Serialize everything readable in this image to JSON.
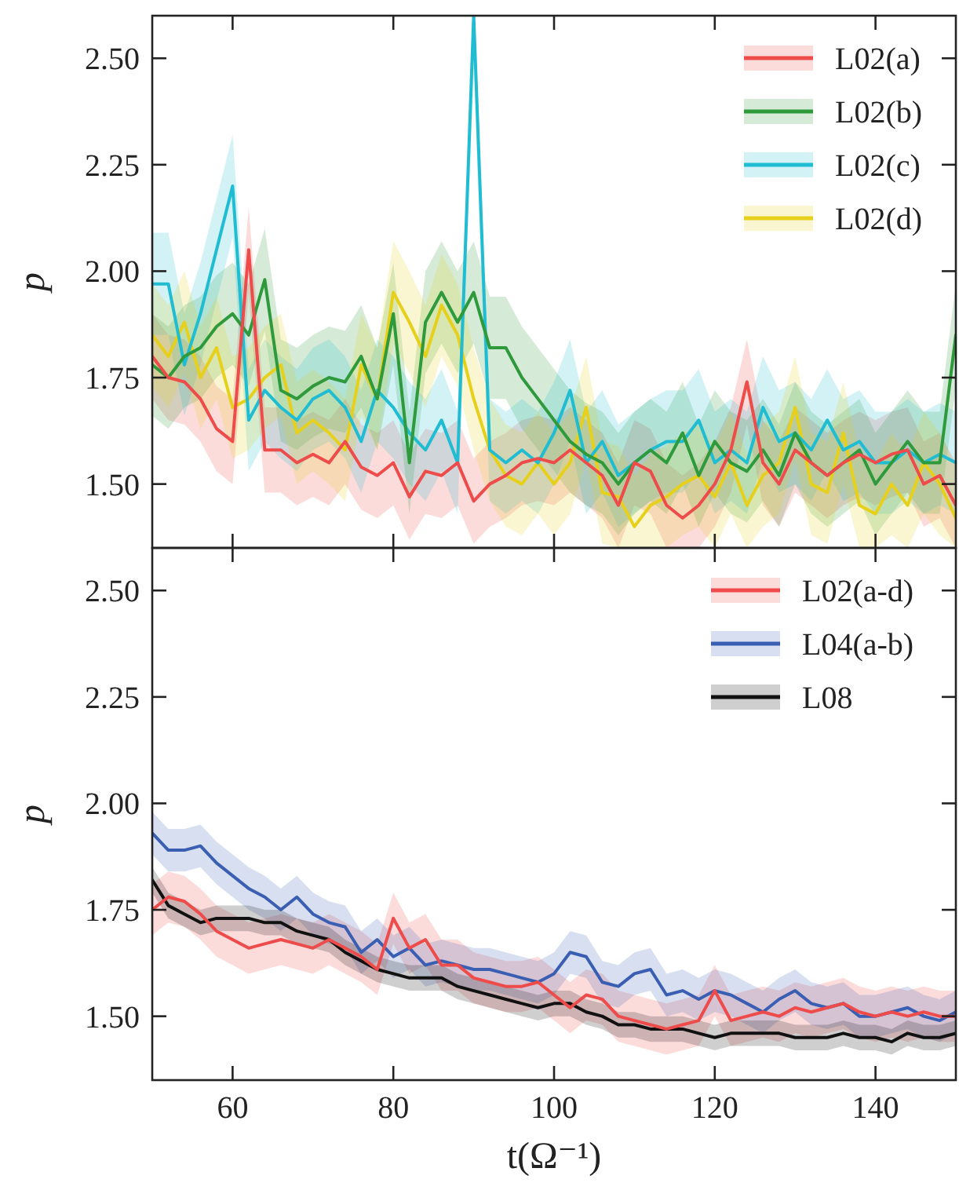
{
  "chart_data": [
    {
      "type": "line",
      "ylabel": "p",
      "ylim": [
        1.35,
        2.6
      ],
      "yticks": [
        {
          "value": 1.5,
          "label": "1.50"
        },
        {
          "value": 1.75,
          "label": "1.75"
        },
        {
          "value": 2.0,
          "label": "2.00"
        },
        {
          "value": 2.25,
          "label": "2.25"
        },
        {
          "value": 2.5,
          "label": "2.50"
        }
      ],
      "xlim": [
        50,
        150
      ],
      "xticks": [
        60,
        80,
        100,
        120,
        140
      ],
      "tick_labels": "y",
      "legend": "top right",
      "x": [
        50,
        52,
        54,
        56,
        58,
        60,
        62,
        64,
        66,
        68,
        70,
        72,
        74,
        76,
        78,
        80,
        82,
        84,
        86,
        88,
        90,
        92,
        94,
        96,
        98,
        100,
        102,
        104,
        106,
        108,
        110,
        112,
        114,
        116,
        118,
        120,
        122,
        124,
        126,
        128,
        130,
        132,
        134,
        136,
        138,
        140,
        142,
        144,
        146,
        148,
        150
      ],
      "series": [
        {
          "name": "L02(a)",
          "color": "#ee4b4b",
          "values": [
            1.8,
            1.75,
            1.74,
            1.7,
            1.63,
            1.6,
            2.05,
            1.58,
            1.58,
            1.55,
            1.57,
            1.55,
            1.6,
            1.54,
            1.52,
            1.55,
            1.47,
            1.53,
            1.52,
            1.55,
            1.46,
            1.5,
            1.52,
            1.55,
            1.56,
            1.55,
            1.58,
            1.55,
            1.52,
            1.45,
            1.55,
            1.53,
            1.45,
            1.42,
            1.45,
            1.5,
            1.58,
            1.74,
            1.55,
            1.5,
            1.58,
            1.55,
            1.52,
            1.55,
            1.57,
            1.55,
            1.57,
            1.58,
            1.5,
            1.52,
            1.45
          ],
          "lower": [
            1.7,
            1.65,
            1.64,
            1.6,
            1.53,
            1.5,
            1.95,
            1.48,
            1.48,
            1.45,
            1.47,
            1.45,
            1.5,
            1.44,
            1.42,
            1.45,
            1.37,
            1.43,
            1.42,
            1.45,
            1.36,
            1.4,
            1.42,
            1.45,
            1.46,
            1.45,
            1.48,
            1.45,
            1.42,
            1.35,
            1.45,
            1.43,
            1.35,
            1.35,
            1.35,
            1.4,
            1.48,
            1.64,
            1.45,
            1.4,
            1.48,
            1.45,
            1.42,
            1.45,
            1.47,
            1.45,
            1.47,
            1.48,
            1.4,
            1.42,
            1.35
          ],
          "upper": [
            1.9,
            1.85,
            1.84,
            1.8,
            1.73,
            1.7,
            2.15,
            1.68,
            1.68,
            1.65,
            1.67,
            1.65,
            1.7,
            1.64,
            1.62,
            1.65,
            1.57,
            1.63,
            1.62,
            1.65,
            1.56,
            1.6,
            1.62,
            1.65,
            1.66,
            1.65,
            1.68,
            1.65,
            1.62,
            1.55,
            1.65,
            1.63,
            1.55,
            1.52,
            1.55,
            1.6,
            1.68,
            1.84,
            1.65,
            1.6,
            1.68,
            1.65,
            1.62,
            1.65,
            1.67,
            1.65,
            1.67,
            1.68,
            1.6,
            1.62,
            1.55
          ]
        },
        {
          "name": "L02(b)",
          "color": "#2f9a3c",
          "values": [
            1.78,
            1.75,
            1.8,
            1.82,
            1.87,
            1.9,
            1.85,
            1.98,
            1.72,
            1.7,
            1.73,
            1.75,
            1.74,
            1.8,
            1.7,
            1.9,
            1.55,
            1.88,
            1.95,
            1.88,
            1.95,
            1.82,
            1.82,
            1.75,
            1.7,
            1.65,
            1.6,
            1.57,
            1.55,
            1.5,
            1.55,
            1.58,
            1.55,
            1.62,
            1.52,
            1.6,
            1.55,
            1.53,
            1.58,
            1.52,
            1.62,
            1.55,
            1.52,
            1.55,
            1.58,
            1.5,
            1.55,
            1.6,
            1.55,
            1.55,
            1.85
          ],
          "lower": [
            1.66,
            1.63,
            1.68,
            1.7,
            1.75,
            1.78,
            1.73,
            1.86,
            1.6,
            1.58,
            1.61,
            1.63,
            1.62,
            1.68,
            1.58,
            1.78,
            1.43,
            1.76,
            1.83,
            1.76,
            1.83,
            1.7,
            1.7,
            1.63,
            1.58,
            1.53,
            1.48,
            1.45,
            1.43,
            1.38,
            1.43,
            1.46,
            1.43,
            1.5,
            1.4,
            1.48,
            1.43,
            1.41,
            1.46,
            1.4,
            1.5,
            1.43,
            1.4,
            1.43,
            1.46,
            1.38,
            1.43,
            1.48,
            1.43,
            1.43,
            1.73
          ],
          "upper": [
            1.9,
            1.87,
            1.92,
            1.94,
            1.99,
            2.02,
            1.97,
            2.1,
            1.84,
            1.82,
            1.85,
            1.87,
            1.86,
            1.92,
            1.82,
            2.02,
            1.67,
            2.0,
            2.07,
            2.0,
            2.07,
            1.94,
            1.94,
            1.87,
            1.82,
            1.77,
            1.72,
            1.69,
            1.67,
            1.62,
            1.67,
            1.7,
            1.67,
            1.74,
            1.64,
            1.72,
            1.67,
            1.65,
            1.7,
            1.64,
            1.74,
            1.67,
            1.64,
            1.67,
            1.7,
            1.62,
            1.67,
            1.72,
            1.67,
            1.67,
            1.97
          ]
        },
        {
          "name": "L02(c)",
          "color": "#1fbcd2",
          "values": [
            1.97,
            1.97,
            1.78,
            1.9,
            2.05,
            2.2,
            1.65,
            1.72,
            1.68,
            1.65,
            1.7,
            1.72,
            1.68,
            1.6,
            1.72,
            1.68,
            1.62,
            1.58,
            1.65,
            1.55,
            2.6,
            1.58,
            1.55,
            1.58,
            1.55,
            1.62,
            1.72,
            1.55,
            1.6,
            1.52,
            1.55,
            1.58,
            1.6,
            1.6,
            1.65,
            1.55,
            1.58,
            1.55,
            1.68,
            1.6,
            1.62,
            1.58,
            1.65,
            1.58,
            1.6,
            1.55,
            1.55,
            1.58,
            1.55,
            1.57,
            1.55
          ],
          "lower": [
            1.85,
            1.85,
            1.66,
            1.78,
            1.93,
            2.08,
            1.53,
            1.6,
            1.56,
            1.53,
            1.58,
            1.6,
            1.56,
            1.48,
            1.6,
            1.56,
            1.5,
            1.46,
            1.53,
            1.43,
            2.48,
            1.46,
            1.43,
            1.46,
            1.43,
            1.5,
            1.6,
            1.43,
            1.48,
            1.4,
            1.43,
            1.46,
            1.48,
            1.48,
            1.53,
            1.43,
            1.46,
            1.43,
            1.56,
            1.48,
            1.5,
            1.46,
            1.53,
            1.46,
            1.48,
            1.43,
            1.43,
            1.46,
            1.43,
            1.45,
            1.43
          ],
          "upper": [
            2.09,
            2.09,
            1.9,
            2.02,
            2.17,
            2.32,
            1.77,
            1.84,
            1.8,
            1.77,
            1.82,
            1.84,
            1.8,
            1.72,
            1.84,
            1.8,
            1.74,
            1.7,
            1.77,
            1.67,
            2.6,
            1.7,
            1.67,
            1.7,
            1.67,
            1.74,
            1.84,
            1.67,
            1.72,
            1.64,
            1.67,
            1.7,
            1.72,
            1.72,
            1.77,
            1.67,
            1.7,
            1.67,
            1.8,
            1.72,
            1.74,
            1.7,
            1.77,
            1.7,
            1.72,
            1.67,
            1.67,
            1.7,
            1.67,
            1.69,
            1.67
          ]
        },
        {
          "name": "L02(d)",
          "color": "#e6d01c",
          "values": [
            1.85,
            1.8,
            1.88,
            1.75,
            1.82,
            1.68,
            1.7,
            1.75,
            1.78,
            1.62,
            1.65,
            1.62,
            1.58,
            1.78,
            1.7,
            1.95,
            1.88,
            1.8,
            1.92,
            1.85,
            1.7,
            1.58,
            1.52,
            1.5,
            1.55,
            1.5,
            1.55,
            1.68,
            1.48,
            1.47,
            1.4,
            1.45,
            1.47,
            1.5,
            1.52,
            1.47,
            1.55,
            1.45,
            1.52,
            1.55,
            1.68,
            1.5,
            1.48,
            1.62,
            1.45,
            1.43,
            1.5,
            1.45,
            1.55,
            1.5,
            1.42
          ],
          "lower": [
            1.73,
            1.68,
            1.76,
            1.63,
            1.7,
            1.56,
            1.58,
            1.63,
            1.66,
            1.5,
            1.53,
            1.5,
            1.46,
            1.66,
            1.58,
            1.83,
            1.76,
            1.68,
            1.8,
            1.73,
            1.58,
            1.46,
            1.4,
            1.38,
            1.43,
            1.38,
            1.43,
            1.56,
            1.36,
            1.35,
            1.35,
            1.35,
            1.35,
            1.38,
            1.4,
            1.35,
            1.43,
            1.35,
            1.4,
            1.43,
            1.56,
            1.38,
            1.36,
            1.5,
            1.35,
            1.35,
            1.38,
            1.35,
            1.43,
            1.38,
            1.35
          ],
          "upper": [
            1.97,
            1.92,
            2.0,
            1.87,
            1.94,
            1.8,
            1.82,
            1.87,
            1.9,
            1.74,
            1.77,
            1.74,
            1.7,
            1.9,
            1.82,
            2.07,
            2.0,
            1.92,
            2.04,
            1.97,
            1.82,
            1.7,
            1.64,
            1.62,
            1.67,
            1.62,
            1.67,
            1.8,
            1.6,
            1.59,
            1.52,
            1.57,
            1.59,
            1.62,
            1.64,
            1.59,
            1.67,
            1.57,
            1.64,
            1.67,
            1.8,
            1.62,
            1.6,
            1.74,
            1.57,
            1.55,
            1.62,
            1.57,
            1.67,
            1.62,
            1.54
          ]
        }
      ]
    },
    {
      "type": "line",
      "ylabel": "p",
      "xlabel": "t(Ω⁻¹)",
      "ylim": [
        1.35,
        2.6
      ],
      "yticks": [
        {
          "value": 1.5,
          "label": "1.50"
        },
        {
          "value": 1.75,
          "label": "1.75"
        },
        {
          "value": 2.0,
          "label": "2.00"
        },
        {
          "value": 2.25,
          "label": "2.25"
        },
        {
          "value": 2.5,
          "label": "2.50"
        }
      ],
      "xlim": [
        50,
        150
      ],
      "xticks": [
        60,
        80,
        100,
        120,
        140
      ],
      "legend": "top right",
      "x": [
        50,
        52,
        54,
        56,
        58,
        60,
        62,
        64,
        66,
        68,
        70,
        72,
        74,
        76,
        78,
        80,
        82,
        84,
        86,
        88,
        90,
        92,
        94,
        96,
        98,
        100,
        102,
        104,
        106,
        108,
        110,
        112,
        114,
        116,
        118,
        120,
        122,
        124,
        126,
        128,
        130,
        132,
        134,
        136,
        138,
        140,
        142,
        144,
        146,
        148,
        150
      ],
      "series": [
        {
          "name": "L02(a-d)",
          "color": "#ee4b4b",
          "values": [
            1.75,
            1.78,
            1.77,
            1.74,
            1.7,
            1.68,
            1.66,
            1.67,
            1.68,
            1.67,
            1.66,
            1.68,
            1.66,
            1.64,
            1.61,
            1.73,
            1.66,
            1.68,
            1.62,
            1.62,
            1.59,
            1.58,
            1.57,
            1.57,
            1.58,
            1.55,
            1.52,
            1.55,
            1.54,
            1.5,
            1.49,
            1.48,
            1.47,
            1.48,
            1.49,
            1.56,
            1.49,
            1.5,
            1.51,
            1.5,
            1.52,
            1.51,
            1.52,
            1.53,
            1.51,
            1.5,
            1.51,
            1.5,
            1.51,
            1.5,
            1.5
          ],
          "lower": [
            1.69,
            1.72,
            1.71,
            1.68,
            1.64,
            1.62,
            1.6,
            1.61,
            1.62,
            1.61,
            1.6,
            1.62,
            1.6,
            1.58,
            1.55,
            1.67,
            1.6,
            1.62,
            1.56,
            1.56,
            1.53,
            1.52,
            1.51,
            1.51,
            1.52,
            1.49,
            1.46,
            1.49,
            1.48,
            1.44,
            1.43,
            1.42,
            1.41,
            1.42,
            1.43,
            1.5,
            1.43,
            1.44,
            1.45,
            1.44,
            1.46,
            1.45,
            1.46,
            1.47,
            1.45,
            1.44,
            1.45,
            1.44,
            1.45,
            1.44,
            1.44
          ],
          "upper": [
            1.81,
            1.84,
            1.83,
            1.8,
            1.76,
            1.74,
            1.72,
            1.73,
            1.74,
            1.73,
            1.72,
            1.74,
            1.72,
            1.7,
            1.67,
            1.79,
            1.72,
            1.74,
            1.68,
            1.68,
            1.65,
            1.64,
            1.63,
            1.63,
            1.64,
            1.61,
            1.58,
            1.61,
            1.6,
            1.56,
            1.55,
            1.54,
            1.53,
            1.54,
            1.55,
            1.62,
            1.55,
            1.56,
            1.57,
            1.56,
            1.58,
            1.57,
            1.58,
            1.59,
            1.57,
            1.56,
            1.57,
            1.56,
            1.57,
            1.56,
            1.56
          ]
        },
        {
          "name": "L04(a-b)",
          "color": "#3a5fb2",
          "values": [
            1.93,
            1.89,
            1.89,
            1.9,
            1.86,
            1.83,
            1.8,
            1.78,
            1.75,
            1.78,
            1.74,
            1.72,
            1.71,
            1.65,
            1.68,
            1.64,
            1.66,
            1.62,
            1.63,
            1.62,
            1.61,
            1.61,
            1.6,
            1.59,
            1.58,
            1.6,
            1.65,
            1.64,
            1.58,
            1.57,
            1.6,
            1.61,
            1.55,
            1.56,
            1.54,
            1.56,
            1.55,
            1.53,
            1.51,
            1.54,
            1.56,
            1.53,
            1.52,
            1.53,
            1.5,
            1.5,
            1.51,
            1.52,
            1.5,
            1.49,
            1.51
          ],
          "lower": [
            1.88,
            1.84,
            1.84,
            1.85,
            1.81,
            1.78,
            1.75,
            1.73,
            1.7,
            1.73,
            1.69,
            1.67,
            1.66,
            1.6,
            1.63,
            1.59,
            1.61,
            1.57,
            1.58,
            1.57,
            1.56,
            1.56,
            1.55,
            1.54,
            1.53,
            1.55,
            1.6,
            1.59,
            1.53,
            1.52,
            1.55,
            1.56,
            1.5,
            1.51,
            1.49,
            1.51,
            1.5,
            1.48,
            1.46,
            1.49,
            1.51,
            1.48,
            1.47,
            1.48,
            1.45,
            1.45,
            1.46,
            1.47,
            1.45,
            1.44,
            1.46
          ],
          "upper": [
            1.98,
            1.94,
            1.94,
            1.95,
            1.91,
            1.88,
            1.85,
            1.83,
            1.8,
            1.83,
            1.79,
            1.77,
            1.76,
            1.7,
            1.73,
            1.69,
            1.71,
            1.67,
            1.68,
            1.67,
            1.66,
            1.66,
            1.65,
            1.64,
            1.63,
            1.65,
            1.7,
            1.69,
            1.63,
            1.62,
            1.65,
            1.66,
            1.6,
            1.61,
            1.59,
            1.61,
            1.6,
            1.58,
            1.56,
            1.59,
            1.61,
            1.58,
            1.57,
            1.58,
            1.55,
            1.55,
            1.56,
            1.57,
            1.55,
            1.54,
            1.56
          ]
        },
        {
          "name": "L08",
          "color": "#111111",
          "values": [
            1.82,
            1.76,
            1.74,
            1.72,
            1.73,
            1.73,
            1.73,
            1.72,
            1.72,
            1.7,
            1.69,
            1.68,
            1.65,
            1.63,
            1.61,
            1.6,
            1.59,
            1.59,
            1.59,
            1.57,
            1.56,
            1.55,
            1.54,
            1.53,
            1.52,
            1.53,
            1.53,
            1.51,
            1.5,
            1.48,
            1.48,
            1.47,
            1.47,
            1.47,
            1.46,
            1.45,
            1.46,
            1.46,
            1.46,
            1.46,
            1.45,
            1.45,
            1.45,
            1.46,
            1.45,
            1.45,
            1.44,
            1.46,
            1.45,
            1.45,
            1.46
          ],
          "lower": [
            1.79,
            1.73,
            1.71,
            1.69,
            1.7,
            1.7,
            1.7,
            1.69,
            1.69,
            1.67,
            1.66,
            1.65,
            1.62,
            1.6,
            1.58,
            1.57,
            1.56,
            1.56,
            1.56,
            1.54,
            1.53,
            1.52,
            1.51,
            1.5,
            1.49,
            1.5,
            1.5,
            1.48,
            1.47,
            1.45,
            1.45,
            1.44,
            1.44,
            1.44,
            1.43,
            1.42,
            1.43,
            1.43,
            1.43,
            1.43,
            1.42,
            1.42,
            1.42,
            1.43,
            1.42,
            1.42,
            1.41,
            1.43,
            1.42,
            1.42,
            1.43
          ],
          "upper": [
            1.85,
            1.79,
            1.77,
            1.75,
            1.76,
            1.76,
            1.76,
            1.75,
            1.75,
            1.73,
            1.72,
            1.71,
            1.68,
            1.66,
            1.64,
            1.63,
            1.62,
            1.62,
            1.62,
            1.6,
            1.59,
            1.58,
            1.57,
            1.56,
            1.55,
            1.56,
            1.56,
            1.54,
            1.53,
            1.51,
            1.51,
            1.5,
            1.5,
            1.5,
            1.49,
            1.48,
            1.49,
            1.49,
            1.49,
            1.49,
            1.48,
            1.48,
            1.48,
            1.49,
            1.48,
            1.48,
            1.47,
            1.49,
            1.48,
            1.48,
            1.49
          ]
        }
      ]
    }
  ]
}
